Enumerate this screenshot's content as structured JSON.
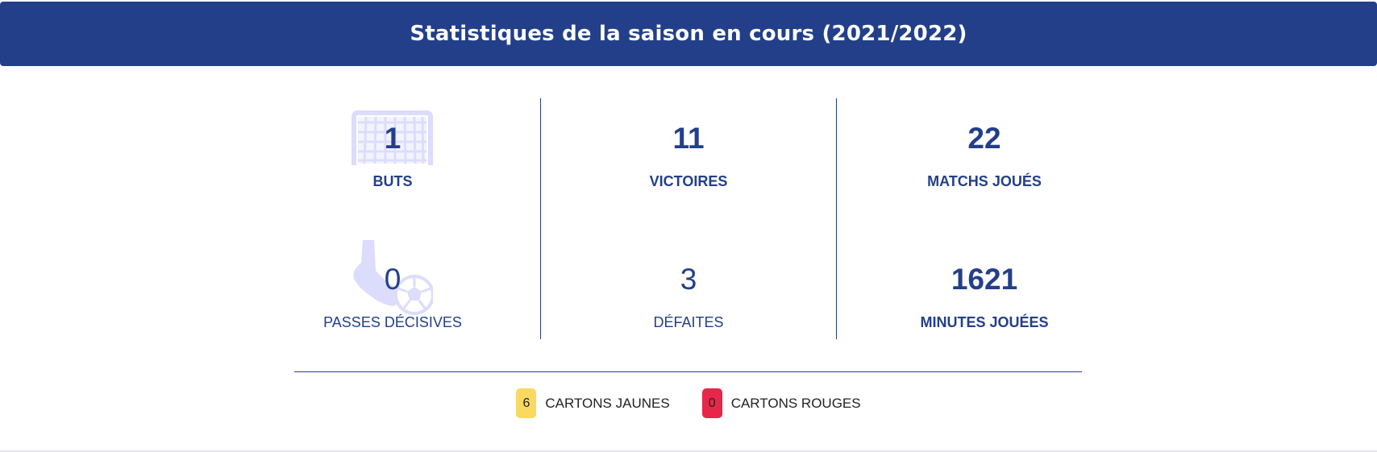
{
  "header": {
    "title": "Statistiques de la saison en cours (2021/2022)"
  },
  "stats": {
    "buts": {
      "value": "1",
      "label": "BUTS"
    },
    "victoires": {
      "value": "11",
      "label": "VICTOIRES"
    },
    "matchs_joues": {
      "value": "22",
      "label": "MATCHS JOUÉS"
    },
    "passes_decisives": {
      "value": "0",
      "label": "PASSES DÉCISIVES"
    },
    "defaites": {
      "value": "3",
      "label": "DÉFAITES"
    },
    "minutes_jouees": {
      "value": "1621",
      "label": "MINUTES JOUÉES"
    }
  },
  "cards": {
    "yellow": {
      "count": "6",
      "label": "CARTONS JAUNES",
      "color": "#f9d960"
    },
    "red": {
      "count": "0",
      "label": "CARTONS ROUGES",
      "color": "#e8264a"
    }
  },
  "icons": {
    "goal": "goal-net-icon",
    "assist": "boot-ball-icon"
  },
  "colors": {
    "primary": "#233f8a",
    "icon_tint": "#dcdcfd"
  }
}
